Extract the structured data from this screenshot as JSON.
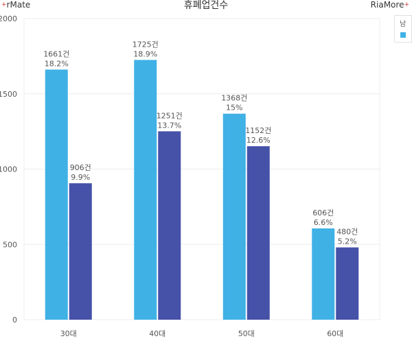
{
  "brand_left": "rMate",
  "brand_right": "RiaMore",
  "brand_plus": "+",
  "chart_data": {
    "type": "bar",
    "title": "휴폐업건수",
    "xlabel": "",
    "ylabel": "",
    "ylim": [
      0,
      2000
    ],
    "yticks": [
      0,
      500,
      1000,
      1500,
      2000
    ],
    "grid": true,
    "legend_placement": "top-right",
    "categories": [
      "30대",
      "40대",
      "50대",
      "60대"
    ],
    "series": [
      {
        "name": "남",
        "color": "#3fb1e5",
        "values": [
          1661,
          1725,
          1368,
          606
        ],
        "labels_count": [
          "1661건",
          "1725건",
          "1368건",
          "606건"
        ],
        "labels_pct": [
          "18.2%",
          "18.9%",
          "15%",
          "6.6%"
        ]
      },
      {
        "name": "",
        "color": "#4651a8",
        "values": [
          906,
          1251,
          1152,
          480
        ],
        "labels_count": [
          "906건",
          "1251건",
          "1152건",
          "480건"
        ],
        "labels_pct": [
          "9.9%",
          "13.7%",
          "12.6%",
          "5.2%"
        ]
      }
    ]
  }
}
